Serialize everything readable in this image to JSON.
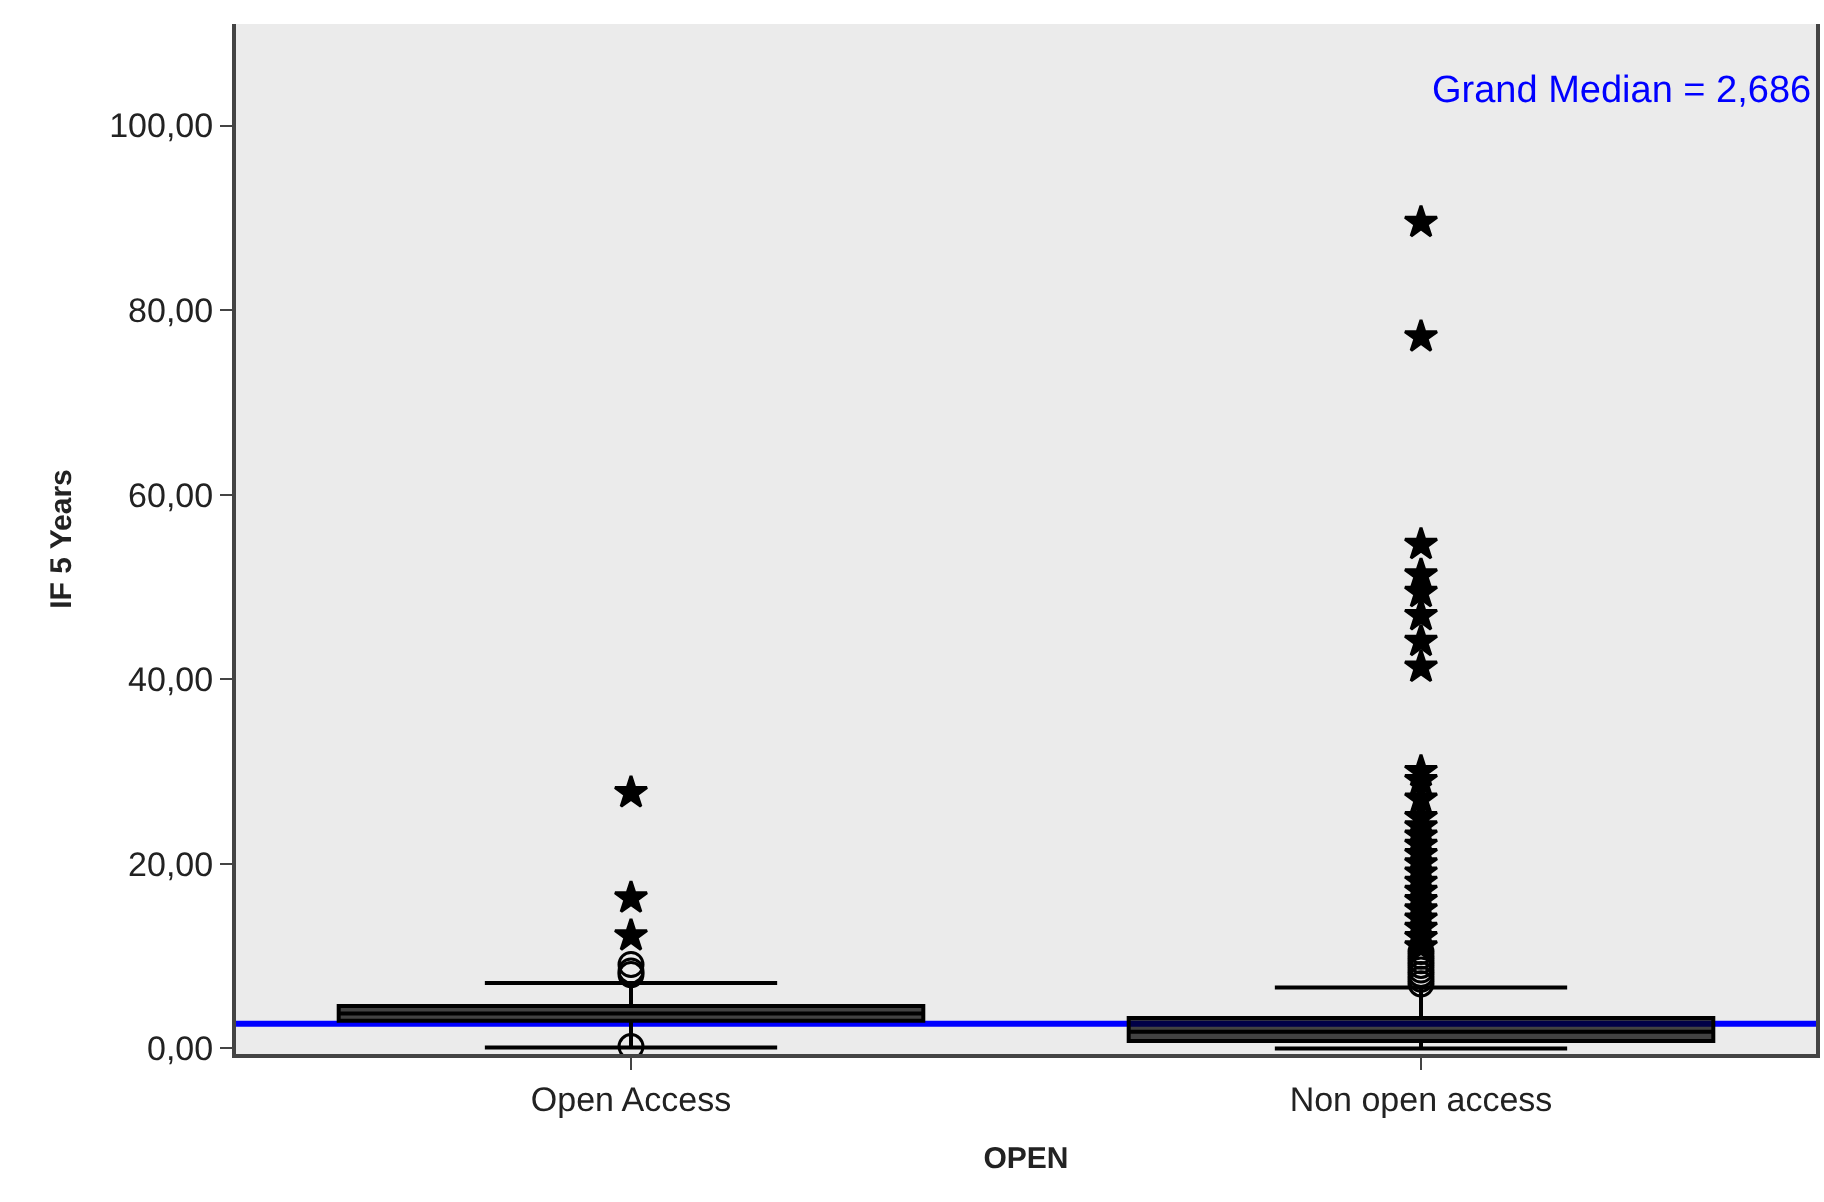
{
  "chart_data": {
    "type": "box",
    "xlabel": "OPEN",
    "ylabel": "IF 5 Years",
    "categories": [
      "Open Access",
      "Non open access"
    ],
    "boxes": [
      {
        "low": 0.1,
        "q1": 3.0,
        "median": 3.8,
        "q3": 4.6,
        "high": 7.1,
        "outliers": [
          0.2,
          8.0,
          8.4,
          9.1,
          12.2,
          16.3,
          27.7
        ]
      },
      {
        "low": 0.0,
        "q1": 0.8,
        "median": 1.8,
        "q3": 3.3,
        "high": 6.6,
        "outliers": [
          7.0,
          7.5,
          8.0,
          8.5,
          9.0,
          9.5,
          10.0,
          10.5,
          11.0,
          12.0,
          13.0,
          14.0,
          15.0,
          16.0,
          17.0,
          18.0,
          19.0,
          20.0,
          21.0,
          22.0,
          23.0,
          24.0,
          25.0,
          27.0,
          29.0,
          30.0,
          41.3,
          44.1,
          46.9,
          49.4,
          51.3,
          54.6,
          77.1,
          89.5
        ]
      }
    ],
    "color": "#000000",
    "ylim": [
      -0.6,
      111
    ],
    "yticks": [
      {
        "value": 0,
        "label": "0,00"
      },
      {
        "value": 20,
        "label": "20,00"
      },
      {
        "value": 40,
        "label": "40,00"
      },
      {
        "value": 60,
        "label": "60,00"
      },
      {
        "value": 80,
        "label": "80,00"
      },
      {
        "value": 100,
        "label": "100,00"
      }
    ],
    "ref_lines": [
      {
        "axis": "y",
        "value": 2.686,
        "label": "Grand Median = 2,686",
        "color": "#0000ff",
        "line_style": "solid"
      }
    ],
    "grid": false
  }
}
